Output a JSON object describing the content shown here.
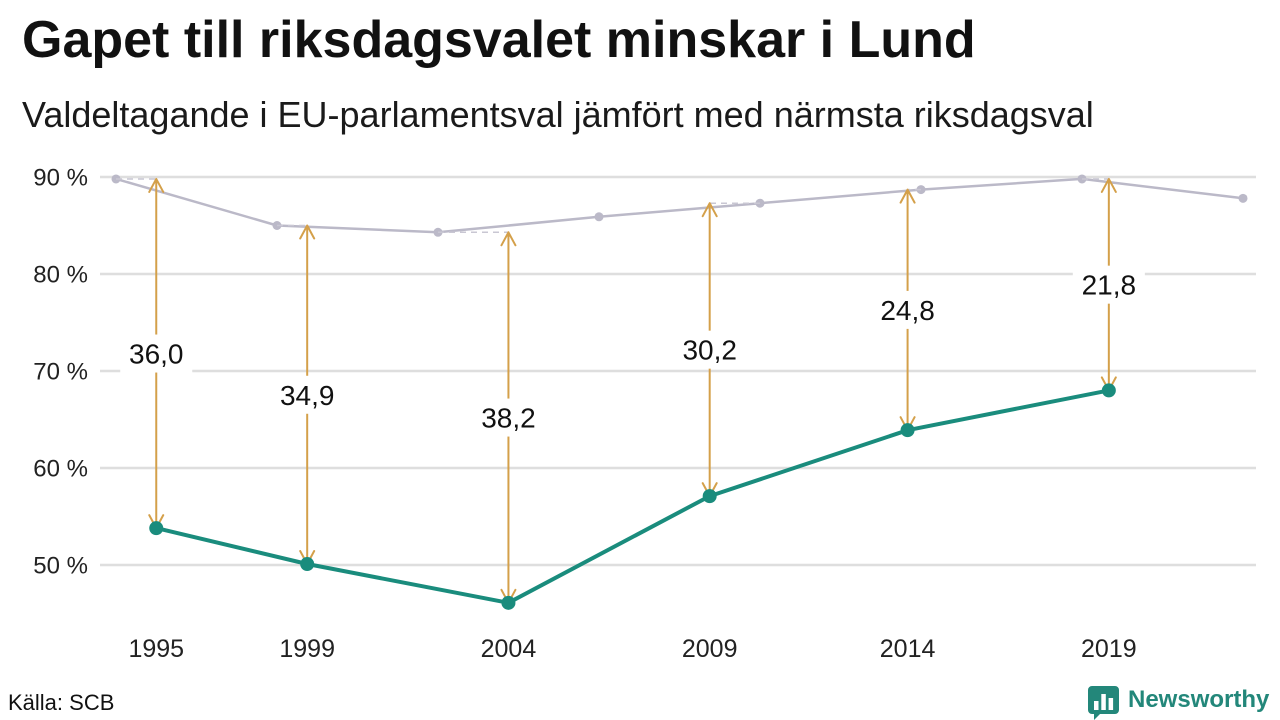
{
  "source": "Källa: SCB",
  "logo": {
    "text": "Newsworthy",
    "icon": "bar-chart-speech-bubble-icon",
    "color": "#23877a"
  },
  "chart_data": {
    "type": "line",
    "title": "Gapet till riksdagsvalet minskar i Lund",
    "subtitle": "Valdeltagande i EU-parlamentsval jämfört med närmsta riksdagsval",
    "xlim": [
      "1994-09",
      "2022-09"
    ],
    "ylim": [
      45,
      90
    ],
    "grid": "horizontal",
    "legend": "none",
    "y_ticks": [
      90,
      80,
      70,
      60,
      50
    ],
    "y_tick_labels": [
      "90 %",
      "80 %",
      "70 %",
      "60 %",
      "50 %"
    ],
    "x_ticks": [
      "1995-09",
      "1999-06",
      "2004-06",
      "2009-06",
      "2014-05",
      "2019-05"
    ],
    "x_tick_labels": [
      "1995",
      "1999",
      "2004",
      "2009",
      "2014",
      "2019"
    ],
    "series": [
      {
        "color": "#bbb9c8",
        "x": [
          "1994-09",
          "1998-09",
          "2002-09",
          "2006-09",
          "2010-09",
          "2014-09",
          "2018-09",
          "2022-09"
        ],
        "y": [
          89.8,
          85.0,
          84.3,
          85.9,
          87.3,
          88.7,
          89.8,
          87.8
        ]
      },
      {
        "color": "#1a8c7d",
        "x": [
          "1995-09",
          "1999-06",
          "2004-06",
          "2009-06",
          "2014-05",
          "2019-05"
        ],
        "y": [
          53.8,
          50.1,
          46.1,
          57.1,
          63.9,
          68.0
        ]
      }
    ],
    "annotations": {
      "color": "#d4a04a",
      "gaps": [
        {
          "x": "1995-09",
          "ref_x": "1994-09",
          "value": 36.0,
          "label": "36,0"
        },
        {
          "x": "1999-06",
          "ref_x": "1998-09",
          "value": 34.9,
          "label": "34,9"
        },
        {
          "x": "2004-06",
          "ref_x": "2002-09",
          "value": 38.2,
          "label": "38,2"
        },
        {
          "x": "2009-06",
          "ref_x": "2010-09",
          "value": 30.2,
          "label": "30,2"
        },
        {
          "x": "2014-05",
          "ref_x": "2014-09",
          "value": 24.8,
          "label": "24,8"
        },
        {
          "x": "2019-05",
          "ref_x": "2018-09",
          "value": 21.8,
          "label": "21,8"
        }
      ]
    }
  }
}
